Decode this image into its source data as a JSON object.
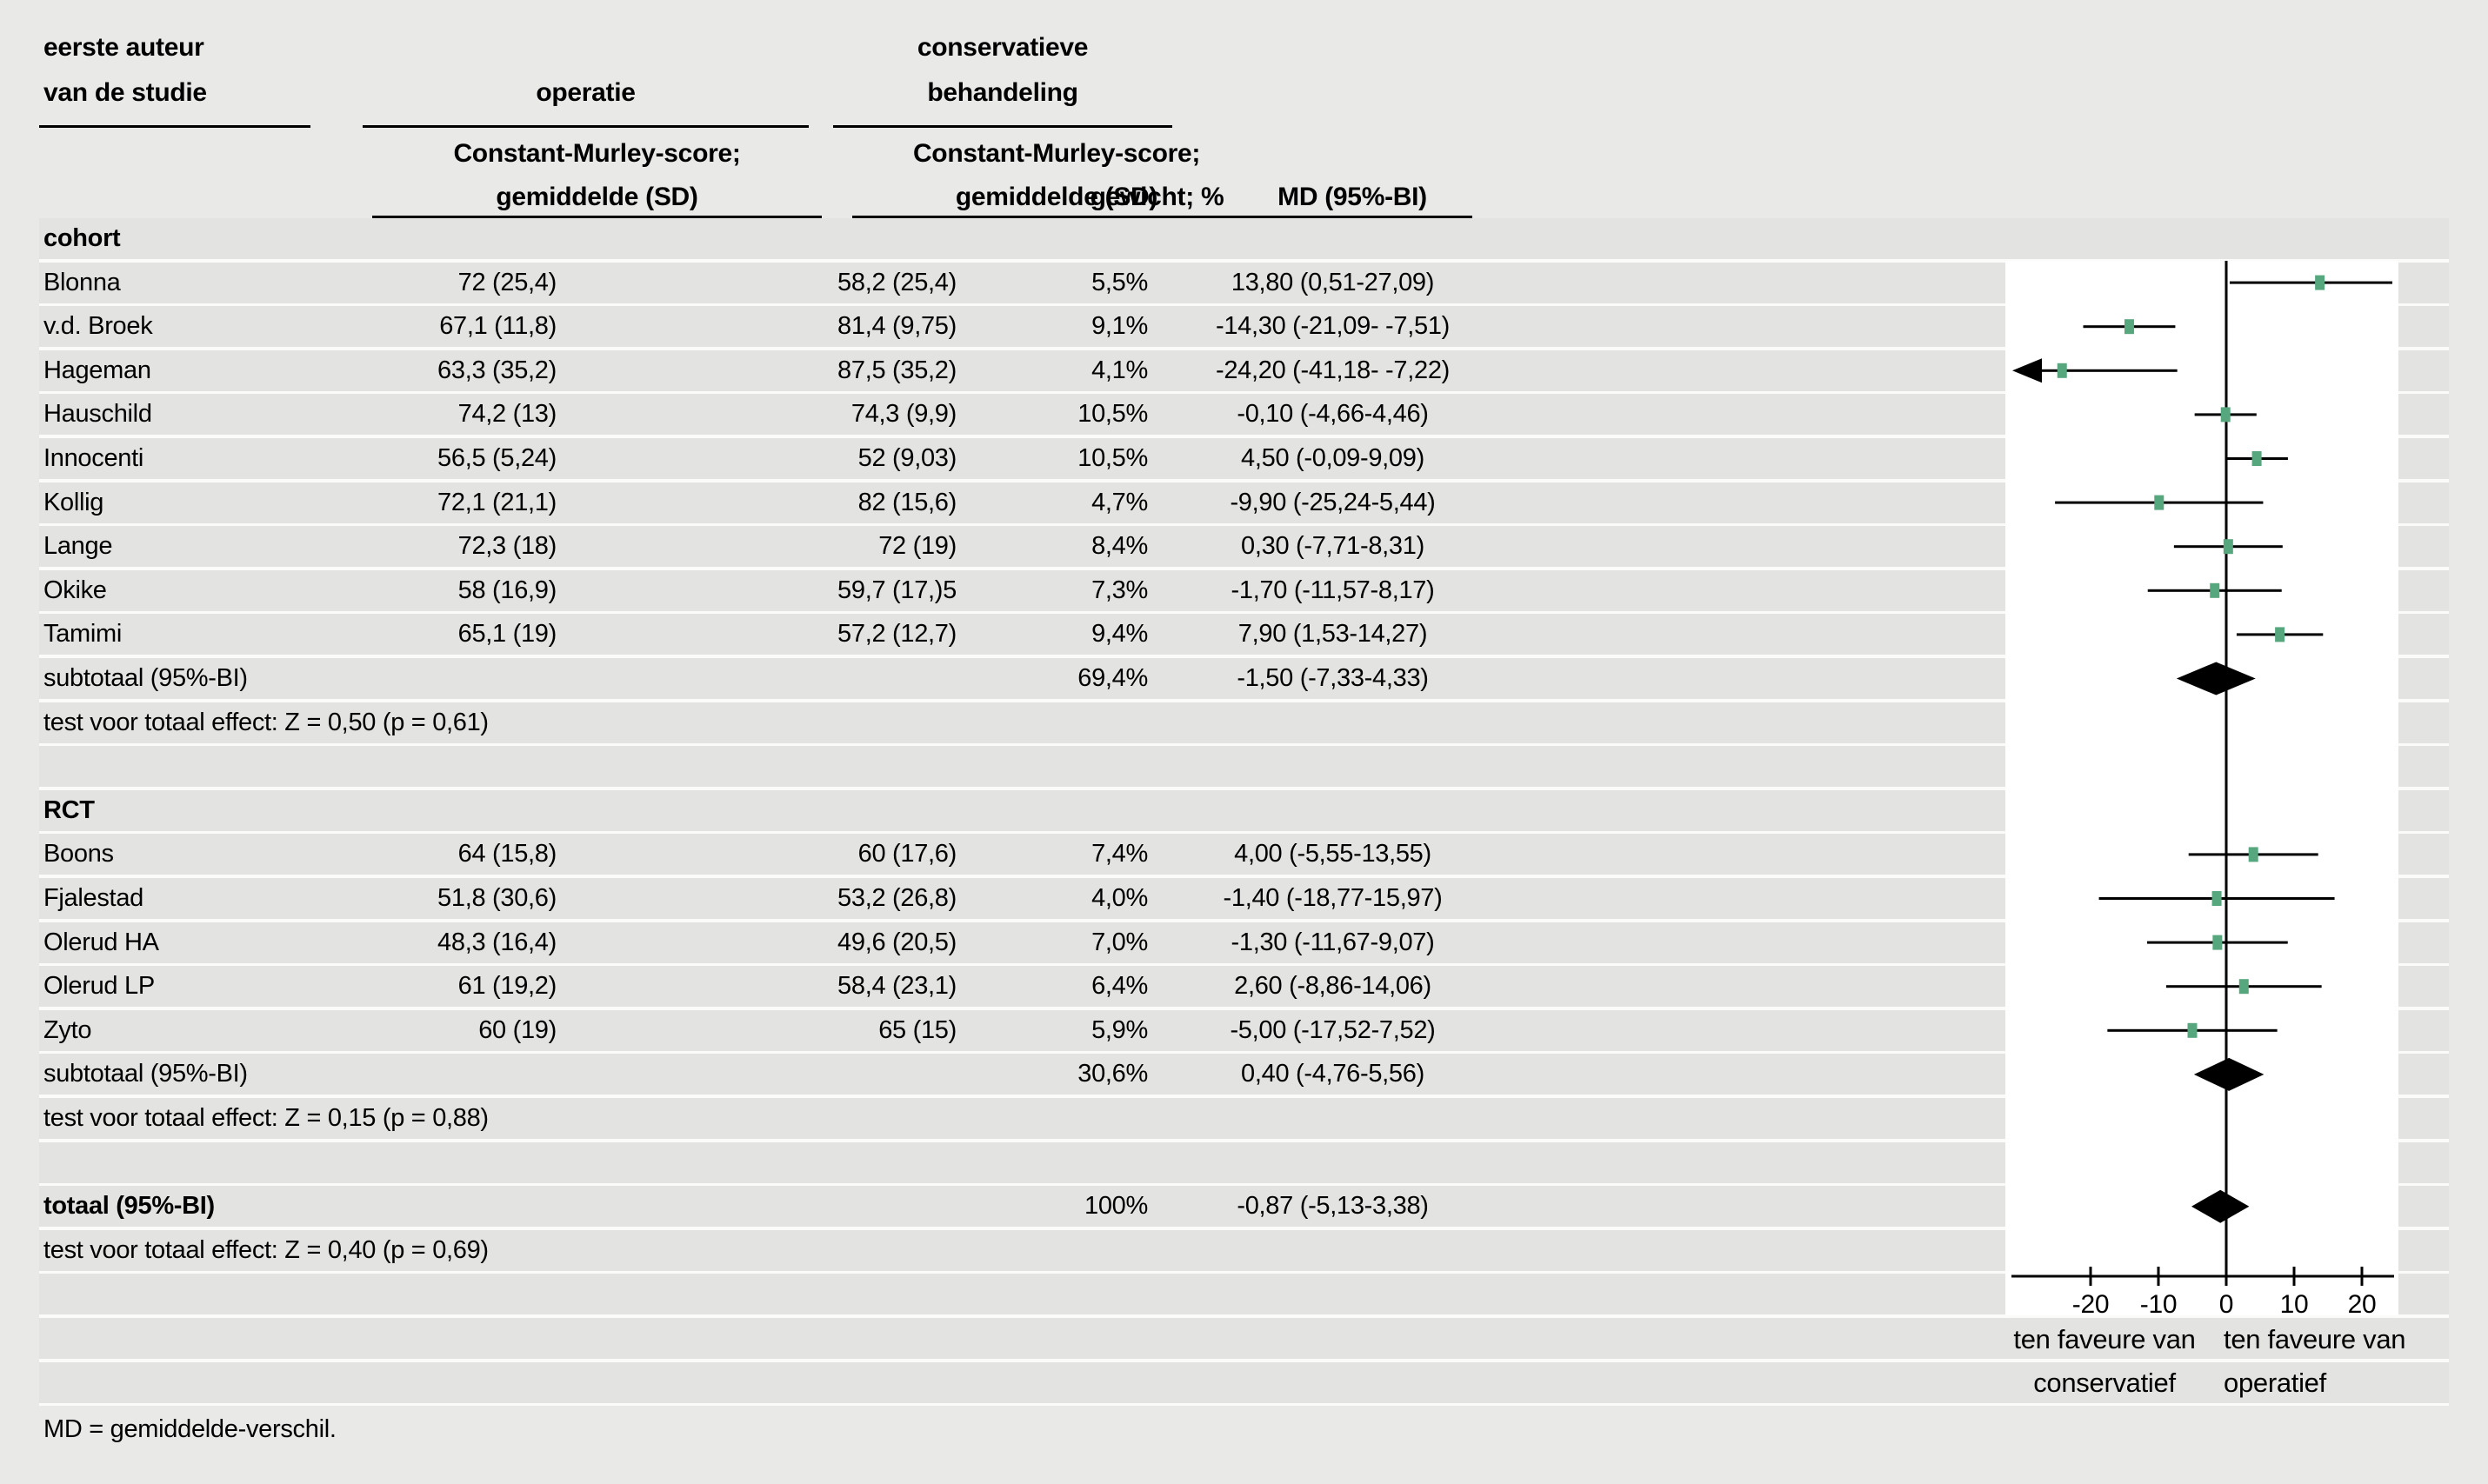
{
  "header": {
    "author_line1": "eerste auteur",
    "author_line2": "van de studie",
    "group1": "operatie",
    "group2_line1": "conservatieve",
    "group2_line2": "behandeling",
    "score1_line1": "Constant-Murley-score;",
    "score1_line2": "gemiddelde (SD)",
    "score2_line1": "Constant-Murley-score;",
    "score2_line2": "gemiddelde (SD)",
    "weight": "gewicht; %",
    "md": "MD (95%-BI)"
  },
  "favor_labels": {
    "left_line1": "ten faveure van",
    "left_line2": "conservatief",
    "right_line1": "ten faveure van",
    "right_line2": "operatief"
  },
  "footnote": "MD = gemiddelde-verschil.",
  "colors": {
    "marker_green": "#57a77e",
    "diamond_black": "#000000",
    "panel_white": "#ffffff",
    "band_grey": "#e3e3e1",
    "page_grey": "#e9e9e8"
  },
  "chart_data": {
    "type": "forest",
    "x_axis": {
      "ticks": [
        -20,
        -10,
        0,
        10,
        20
      ],
      "tick_labels": [
        "-20",
        "-10",
        "0",
        "10",
        "20"
      ],
      "drawn_range": [
        -31.5,
        24.5
      ],
      "zero_line": 0
    },
    "groups": [
      {
        "label": "cohort",
        "studies": [
          {
            "name": "Blonna",
            "operatie": "72 (25,4)",
            "conservatief": "58,2 (25,4)",
            "weight": "5,5%",
            "md_text": "13,80 (0,51-27,09)",
            "md": 13.8,
            "ci_low": 0.51,
            "ci_high": 27.09
          },
          {
            "name": "v.d. Broek",
            "operatie": "67,1 (11,8)",
            "conservatief": "81,4 (9,75)",
            "weight": "9,1%",
            "md_text": "-14,30 (-21,09- -7,51)",
            "md": -14.3,
            "ci_low": -21.09,
            "ci_high": -7.51
          },
          {
            "name": "Hageman",
            "operatie": "63,3 (35,2)",
            "conservatief": "87,5 (35,2)",
            "weight": "4,1%",
            "md_text": "-24,20 (-41,18- -7,22)",
            "md": -24.2,
            "ci_low": -41.18,
            "ci_high": -7.22
          },
          {
            "name": "Hauschild",
            "operatie": "74,2 (13)",
            "conservatief": "74,3 (9,9)",
            "weight": "10,5%",
            "md_text": "-0,10 (-4,66-4,46)",
            "md": -0.1,
            "ci_low": -4.66,
            "ci_high": 4.46
          },
          {
            "name": "Innocenti",
            "operatie": "56,5 (5,24)",
            "conservatief": "52 (9,03)",
            "weight": "10,5%",
            "md_text": "4,50 (-0,09-9,09)",
            "md": 4.5,
            "ci_low": -0.09,
            "ci_high": 9.09
          },
          {
            "name": "Kollig",
            "operatie": "72,1 (21,1)",
            "conservatief": "82 (15,6)",
            "weight": "4,7%",
            "md_text": "-9,90 (-25,24-5,44)",
            "md": -9.9,
            "ci_low": -25.24,
            "ci_high": 5.44
          },
          {
            "name": "Lange",
            "operatie": "72,3 (18)",
            "conservatief": "72 (19)",
            "weight": "8,4%",
            "md_text": "0,30 (-7,71-8,31)",
            "md": 0.3,
            "ci_low": -7.71,
            "ci_high": 8.31
          },
          {
            "name": "Okike",
            "operatie": "58 (16,9)",
            "conservatief": "59,7 (17,)5",
            "weight": "7,3%",
            "md_text": "-1,70 (-11,57-8,17)",
            "md": -1.7,
            "ci_low": -11.57,
            "ci_high": 8.17
          },
          {
            "name": "Tamimi",
            "operatie": "65,1 (19)",
            "conservatief": "57,2 (12,7)",
            "weight": "9,4%",
            "md_text": "7,90 (1,53-14,27)",
            "md": 7.9,
            "ci_low": 1.53,
            "ci_high": 14.27
          }
        ],
        "subtotal": {
          "name": "subtotaal (95%-BI)",
          "weight": "69,4%",
          "md_text": "-1,50 (-7,33-4,33)",
          "md": -1.5,
          "ci_low": -7.33,
          "ci_high": 4.33
        },
        "test_line": "test voor totaal effect: Z = 0,50 (p = 0,61)"
      },
      {
        "label": "RCT",
        "studies": [
          {
            "name": "Boons",
            "operatie": "64 (15,8)",
            "conservatief": "60 (17,6)",
            "weight": "7,4%",
            "md_text": "4,00 (-5,55-13,55)",
            "md": 4.0,
            "ci_low": -5.55,
            "ci_high": 13.55
          },
          {
            "name": "Fjalestad",
            "operatie": "51,8 (30,6)",
            "conservatief": "53,2 (26,8)",
            "weight": "4,0%",
            "md_text": "-1,40 (-18,77-15,97)",
            "md": -1.4,
            "ci_low": -18.77,
            "ci_high": 15.97
          },
          {
            "name": "Olerud HA",
            "operatie": "48,3 (16,4)",
            "conservatief": "49,6 (20,5)",
            "weight": "7,0%",
            "md_text": "-1,30 (-11,67-9,07)",
            "md": -1.3,
            "ci_low": -11.67,
            "ci_high": 9.07
          },
          {
            "name": "Olerud LP",
            "operatie": "61 (19,2)",
            "conservatief": "58,4 (23,1)",
            "weight": "6,4%",
            "md_text": "2,60 (-8,86-14,06)",
            "md": 2.6,
            "ci_low": -8.86,
            "ci_high": 14.06
          },
          {
            "name": "Zyto",
            "operatie": "60 (19)",
            "conservatief": "65 (15)",
            "weight": "5,9%",
            "md_text": "-5,00 (-17,52-7,52)",
            "md": -5.0,
            "ci_low": -17.52,
            "ci_high": 7.52
          }
        ],
        "subtotal": {
          "name": "subtotaal (95%-BI)",
          "weight": "30,6%",
          "md_text": "0,40 (-4,76-5,56)",
          "md": 0.4,
          "ci_low": -4.76,
          "ci_high": 5.56
        },
        "test_line": "test voor totaal effect: Z = 0,15 (p = 0,88)"
      }
    ],
    "total": {
      "name": "totaal (95%-BI)",
      "weight": "100%",
      "md_text": "-0,87 (-5,13-3,38)",
      "md": -0.87,
      "ci_low": -5.13,
      "ci_high": 3.38
    },
    "total_test_line": "test voor totaal effect: Z = 0,40 (p = 0,69)"
  }
}
